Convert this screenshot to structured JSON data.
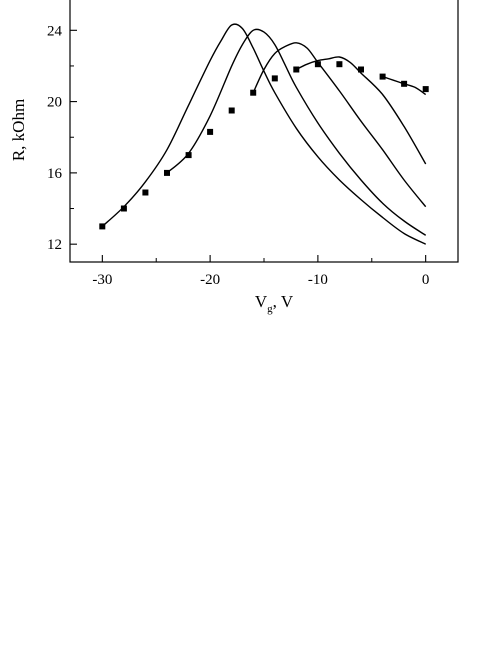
{
  "chart_data": {
    "type": "scatter",
    "xlabel": "V",
    "xlabel_subscript": "g",
    "xlabel_suffix": ", V",
    "ylabel": "R, kOhm",
    "xlim": [
      -33,
      3
    ],
    "ylim": [
      11,
      25.7
    ],
    "xticks": [
      -30,
      -20,
      -10,
      0
    ],
    "xtick_labels": [
      "-30",
      "-20",
      "-10",
      "0"
    ],
    "yticks": [
      12,
      16,
      20,
      24
    ],
    "ytick_labels": [
      "12",
      "16",
      "20",
      "24"
    ],
    "grid": false,
    "series": [
      {
        "kind": "points",
        "marker": "square",
        "x": [
          -30,
          -28,
          -26,
          -24,
          -22,
          -20,
          -18,
          -16,
          -14,
          -12,
          -10,
          -8,
          -6,
          -4,
          -2,
          0
        ],
        "y": [
          13.0,
          14.0,
          14.9,
          16.0,
          17.0,
          18.3,
          19.5,
          20.5,
          21.3,
          21.8,
          22.1,
          22.1,
          21.8,
          21.4,
          21.0,
          20.7
        ]
      },
      {
        "kind": "line",
        "x": [
          -30,
          -28,
          -26,
          -24,
          -22,
          -20,
          -19,
          -18,
          -17,
          -16,
          -15,
          -14,
          -12,
          -10,
          -8,
          -6,
          -4,
          -2,
          0
        ],
        "y": [
          13.0,
          14.1,
          15.5,
          17.3,
          19.8,
          22.3,
          23.4,
          24.3,
          24.1,
          23.0,
          21.7,
          20.5,
          18.5,
          16.9,
          15.6,
          14.5,
          13.5,
          12.6,
          12.0
        ]
      },
      {
        "kind": "line",
        "x": [
          -24,
          -22,
          -20,
          -18,
          -17,
          -16,
          -15,
          -14,
          -13,
          -12,
          -10,
          -8,
          -6,
          -4,
          -2,
          0
        ],
        "y": [
          16.0,
          17.1,
          19.2,
          22.0,
          23.2,
          24.0,
          23.9,
          23.2,
          22.0,
          20.8,
          18.8,
          17.1,
          15.6,
          14.3,
          13.3,
          12.5
        ]
      },
      {
        "kind": "line",
        "x": [
          -16,
          -15,
          -14,
          -13,
          -12,
          -11,
          -10,
          -8,
          -6,
          -4,
          -2,
          0
        ],
        "y": [
          20.5,
          21.8,
          22.7,
          23.1,
          23.3,
          23.0,
          22.2,
          20.6,
          18.9,
          17.3,
          15.6,
          14.1
        ]
      },
      {
        "kind": "line",
        "x": [
          -12,
          -11,
          -10,
          -9,
          -8,
          -7,
          -6,
          -4,
          -2,
          0
        ],
        "y": [
          21.8,
          22.1,
          22.3,
          22.4,
          22.5,
          22.2,
          21.6,
          20.4,
          18.6,
          16.5
        ]
      },
      {
        "kind": "line",
        "x": [
          -4,
          -3,
          -2,
          -1,
          0
        ],
        "y": [
          21.4,
          21.2,
          21.0,
          20.8,
          20.4
        ]
      }
    ],
    "colors": {
      "line": "#000000",
      "marker": "#000000",
      "axis": "#000000"
    }
  }
}
